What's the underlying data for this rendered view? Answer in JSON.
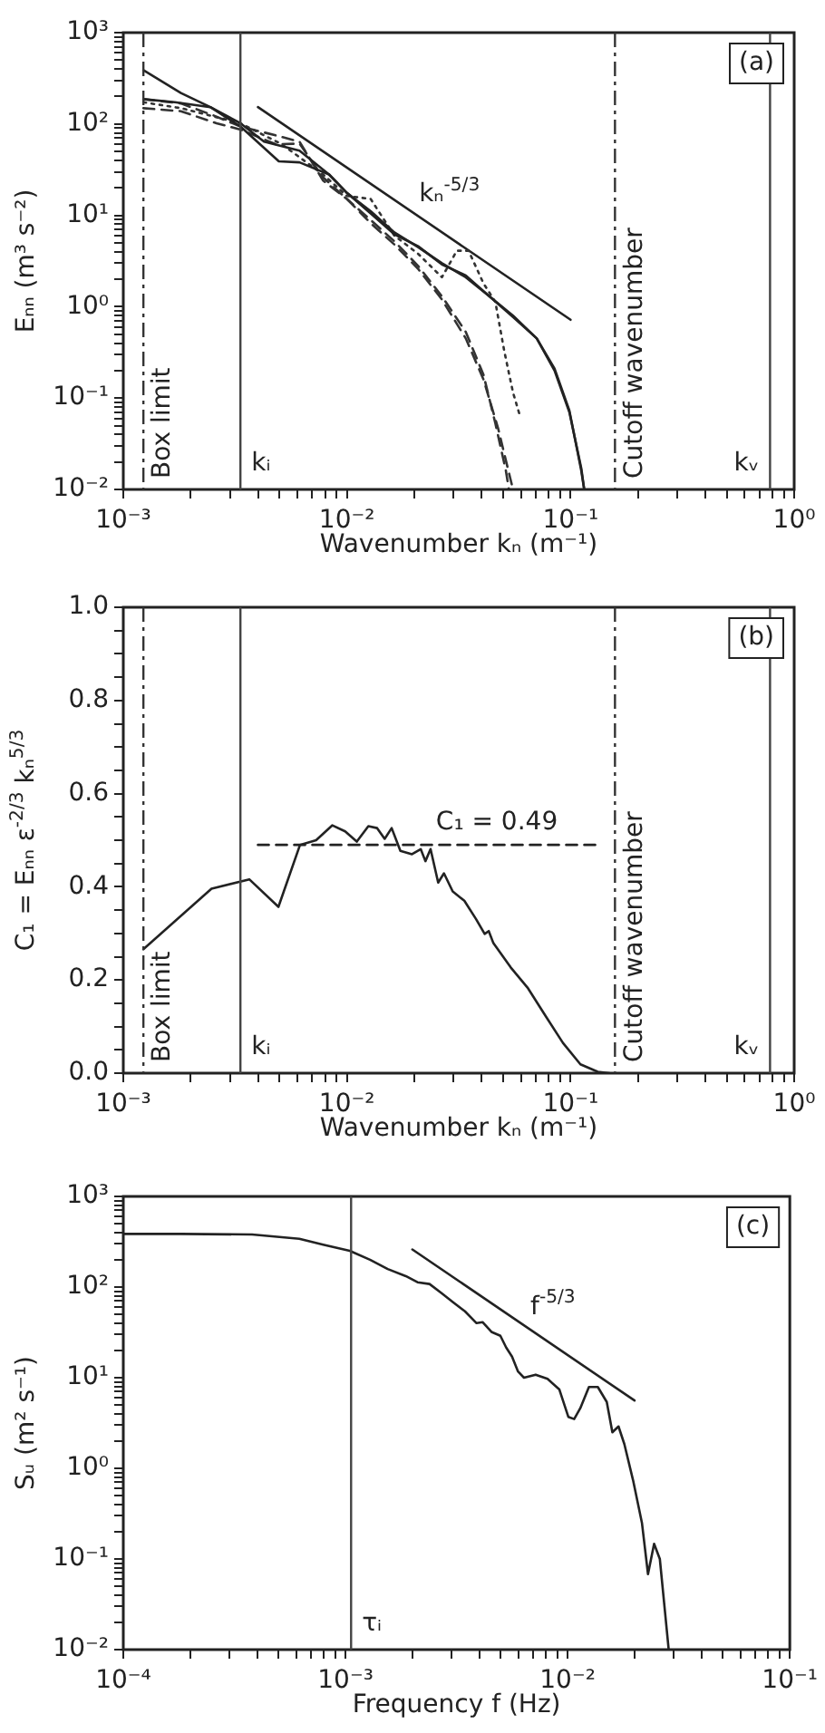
{
  "chart_data": [
    {
      "type": "line",
      "xlabel": "Wavenumber kₙ (m⁻¹)",
      "ylabel": "Eₙₙ (m³ s⁻²)",
      "log": "xy",
      "marker": "none",
      "xlim": [
        0.001,
        1
      ],
      "ylim": [
        0.01,
        1000
      ],
      "xticks": [
        {
          "value": 0.001,
          "label": "10⁻³"
        },
        {
          "value": 0.002,
          "label": null
        },
        {
          "value": 0.003,
          "label": null
        },
        {
          "value": 0.004,
          "label": null
        },
        {
          "value": 0.005,
          "label": null
        },
        {
          "value": 0.006,
          "label": null
        },
        {
          "value": 0.007,
          "label": null
        },
        {
          "value": 0.008,
          "label": null
        },
        {
          "value": 0.009,
          "label": null
        },
        {
          "value": 0.01,
          "label": "10⁻²"
        },
        {
          "value": 0.02,
          "label": null
        },
        {
          "value": 0.03,
          "label": null
        },
        {
          "value": 0.04,
          "label": null
        },
        {
          "value": 0.05,
          "label": null
        },
        {
          "value": 0.06,
          "label": null
        },
        {
          "value": 0.07,
          "label": null
        },
        {
          "value": 0.08,
          "label": null
        },
        {
          "value": 0.09,
          "label": null
        },
        {
          "value": 0.1,
          "label": "10⁻¹"
        },
        {
          "value": 0.2,
          "label": null
        },
        {
          "value": 0.3,
          "label": null
        },
        {
          "value": 0.4,
          "label": null
        },
        {
          "value": 0.5,
          "label": null
        },
        {
          "value": 0.6,
          "label": null
        },
        {
          "value": 0.7,
          "label": null
        },
        {
          "value": 0.8,
          "label": null
        },
        {
          "value": 0.9,
          "label": null
        },
        {
          "value": 1,
          "label": "10⁰"
        }
      ],
      "yticks": [
        {
          "value": 0.01,
          "label": "10⁻²"
        },
        {
          "value": 0.02,
          "label": null
        },
        {
          "value": 0.03,
          "label": null
        },
        {
          "value": 0.04,
          "label": null
        },
        {
          "value": 0.05,
          "label": null
        },
        {
          "value": 0.06,
          "label": null
        },
        {
          "value": 0.07,
          "label": null
        },
        {
          "value": 0.08,
          "label": null
        },
        {
          "value": 0.09,
          "label": null
        },
        {
          "value": 0.1,
          "label": "10⁻¹"
        },
        {
          "value": 0.2,
          "label": null
        },
        {
          "value": 0.3,
          "label": null
        },
        {
          "value": 0.4,
          "label": null
        },
        {
          "value": 0.5,
          "label": null
        },
        {
          "value": 0.6,
          "label": null
        },
        {
          "value": 0.7,
          "label": null
        },
        {
          "value": 0.8,
          "label": null
        },
        {
          "value": 0.9,
          "label": null
        },
        {
          "value": 1,
          "label": "10⁰"
        },
        {
          "value": 2,
          "label": null
        },
        {
          "value": 3,
          "label": null
        },
        {
          "value": 4,
          "label": null
        },
        {
          "value": 5,
          "label": null
        },
        {
          "value": 6,
          "label": null
        },
        {
          "value": 7,
          "label": null
        },
        {
          "value": 8,
          "label": null
        },
        {
          "value": 9,
          "label": null
        },
        {
          "value": 10,
          "label": "10¹"
        },
        {
          "value": 20,
          "label": null
        },
        {
          "value": 30,
          "label": null
        },
        {
          "value": 40,
          "label": null
        },
        {
          "value": 50,
          "label": null
        },
        {
          "value": 60,
          "label": null
        },
        {
          "value": 70,
          "label": null
        },
        {
          "value": 80,
          "label": null
        },
        {
          "value": 90,
          "label": null
        },
        {
          "value": 100,
          "label": "10²"
        },
        {
          "value": 200,
          "label": null
        },
        {
          "value": 300,
          "label": null
        },
        {
          "value": 400,
          "label": null
        },
        {
          "value": 500,
          "label": null
        },
        {
          "value": 600,
          "label": null
        },
        {
          "value": 700,
          "label": null
        },
        {
          "value": 800,
          "label": null
        },
        {
          "value": 900,
          "label": null
        },
        {
          "value": 1000,
          "label": "10³"
        }
      ],
      "series": [
        {
          "type": "line",
          "color": "#222222",
          "line_style": "solid",
          "x": [
            0.00123,
            0.00181,
            0.00245,
            0.00334,
            0.00496,
            0.00614,
            0.00832,
            0.01,
            0.01277,
            0.0163,
            0.0208,
            0.0266,
            0.034,
            0.0434,
            0.0553,
            0.0706,
            0.0848,
            0.0988,
            0.1117,
            0.1151
          ],
          "values": [
            388,
            218,
            153,
            94,
            39,
            38,
            28,
            17.6,
            11.1,
            6.5,
            4.5,
            3.0,
            2.1,
            1.3,
            0.77,
            0.45,
            0.21,
            0.073,
            0.016,
            0.01
          ]
        },
        {
          "type": "line",
          "color": "#222222",
          "line_style": "solid",
          "x": [
            0.00123,
            0.0017,
            0.00245,
            0.00334,
            0.00426,
            0.00614,
            0.00832,
            0.01,
            0.01277,
            0.0163,
            0.0208,
            0.0266,
            0.034,
            0.0434,
            0.0553,
            0.0706,
            0.0848,
            0.0988,
            0.1117,
            0.1151
          ],
          "values": [
            187,
            173,
            153,
            102,
            64,
            51,
            28,
            17.6,
            10.5,
            6.2,
            4.6,
            2.9,
            2.2,
            1.3,
            0.8,
            0.45,
            0.2,
            0.07,
            0.017,
            0.01
          ]
        },
        {
          "type": "line",
          "color": "#333333",
          "line_style": "dashed",
          "x": [
            0.00123,
            0.00181,
            0.00253,
            0.00334,
            0.00481,
            0.00614,
            0.00783,
            0.01,
            0.01277,
            0.0163,
            0.0208,
            0.0266,
            0.034,
            0.0408,
            0.0461,
            0.0514,
            0.053
          ],
          "values": [
            187,
            168,
            124,
            94,
            75,
            64,
            24,
            15.1,
            8.9,
            5.2,
            2.8,
            1.3,
            0.53,
            0.18,
            0.053,
            0.016,
            0.01
          ]
        },
        {
          "type": "line",
          "color": "#333333",
          "line_style": "dashed",
          "x": [
            0.00123,
            0.00181,
            0.00261,
            0.00334,
            0.00481,
            0.00614,
            0.00783,
            0.01,
            0.01277,
            0.0163,
            0.0208,
            0.0266,
            0.034,
            0.0408,
            0.0475,
            0.0536,
            0.0553
          ],
          "values": [
            149,
            138,
            102,
            87,
            60,
            61,
            26,
            15.1,
            8.2,
            4.8,
            2.6,
            1.2,
            0.45,
            0.16,
            0.046,
            0.0136,
            0.01
          ]
        },
        {
          "type": "line",
          "color": "#333333",
          "line_style": "dotted",
          "x": [
            0.00123,
            0.00181,
            0.00334,
            0.00511,
            0.00783,
            0.01,
            0.01277,
            0.0163,
            0.0208,
            0.0266,
            0.031,
            0.035,
            0.0408,
            0.0461,
            0.0505,
            0.0553,
            0.0596
          ],
          "values": [
            173,
            149,
            102,
            60,
            28,
            16.3,
            15.1,
            6.0,
            3.8,
            2.1,
            4.1,
            4.1,
            1.8,
            1.13,
            0.33,
            0.115,
            0.062
          ]
        },
        {
          "type": "line",
          "color": "#222222",
          "line_style": "solid",
          "x": [
            0.004,
            0.1
          ],
          "values": [
            153,
            0.72
          ]
        }
      ],
      "ref_lines": [
        {
          "axis": "x",
          "value": 0.00123,
          "label": "Box limit",
          "color": "#333333",
          "line_style": "dashed"
        },
        {
          "axis": "x",
          "value": 0.00334,
          "label": "kᵢ",
          "color": "#444444",
          "line_style": "solid"
        },
        {
          "axis": "x",
          "value": 0.158,
          "label": "Cutoff wavenumber",
          "color": "#333333",
          "line_style": "dashed"
        },
        {
          "axis": "x",
          "value": 0.78,
          "label": "kᵥ",
          "color": "#444444",
          "line_style": "solid"
        }
      ],
      "annotations": [
        "(a)",
        {
          "text": "kₙ$^{-5/3}$",
          "x": 0.021,
          "y": 9.7
        }
      ]
    },
    {
      "type": "line",
      "xlabel": "Wavenumber kₙ (m⁻¹)",
      "ylabel": "C₁ = Eₙₙ ε$^{-2/3}$ kₙ$^{5/3}$",
      "log": "x",
      "marker": "none",
      "xlim": [
        0.001,
        1
      ],
      "ylim": [
        0,
        1
      ],
      "xticks": [
        {
          "value": 0.001,
          "label": "10⁻³"
        },
        {
          "value": 0.002,
          "label": null
        },
        {
          "value": 0.003,
          "label": null
        },
        {
          "value": 0.004,
          "label": null
        },
        {
          "value": 0.005,
          "label": null
        },
        {
          "value": 0.006,
          "label": null
        },
        {
          "value": 0.007,
          "label": null
        },
        {
          "value": 0.008,
          "label": null
        },
        {
          "value": 0.009,
          "label": null
        },
        {
          "value": 0.01,
          "label": "10⁻²"
        },
        {
          "value": 0.02,
          "label": null
        },
        {
          "value": 0.03,
          "label": null
        },
        {
          "value": 0.04,
          "label": null
        },
        {
          "value": 0.05,
          "label": null
        },
        {
          "value": 0.06,
          "label": null
        },
        {
          "value": 0.07,
          "label": null
        },
        {
          "value": 0.08,
          "label": null
        },
        {
          "value": 0.09,
          "label": null
        },
        {
          "value": 0.1,
          "label": "10⁻¹"
        },
        {
          "value": 0.2,
          "label": null
        },
        {
          "value": 0.3,
          "label": null
        },
        {
          "value": 0.4,
          "label": null
        },
        {
          "value": 0.5,
          "label": null
        },
        {
          "value": 0.6,
          "label": null
        },
        {
          "value": 0.7,
          "label": null
        },
        {
          "value": 0.8,
          "label": null
        },
        {
          "value": 0.9,
          "label": null
        },
        {
          "value": 1,
          "label": "10⁰"
        }
      ],
      "yticks": [
        {
          "value": 0,
          "label": "0.0"
        },
        {
          "value": 0.05,
          "label": null
        },
        {
          "value": 0.1,
          "label": null
        },
        {
          "value": 0.15,
          "label": null
        },
        {
          "value": 0.2,
          "label": "0.2"
        },
        {
          "value": 0.25,
          "label": null
        },
        {
          "value": 0.3,
          "label": null
        },
        {
          "value": 0.35,
          "label": null
        },
        {
          "value": 0.4,
          "label": "0.4"
        },
        {
          "value": 0.45,
          "label": null
        },
        {
          "value": 0.5,
          "label": null
        },
        {
          "value": 0.55,
          "label": null
        },
        {
          "value": 0.6,
          "label": "0.6"
        },
        {
          "value": 0.65,
          "label": null
        },
        {
          "value": 0.7,
          "label": null
        },
        {
          "value": 0.75,
          "label": null
        },
        {
          "value": 0.8,
          "label": "0.8"
        },
        {
          "value": 0.85,
          "label": null
        },
        {
          "value": 0.9,
          "label": null
        },
        {
          "value": 0.95,
          "label": null
        },
        {
          "value": 1,
          "label": "1.0"
        }
      ],
      "series": [
        {
          "type": "line",
          "color": "#222222",
          "line_style": "solid",
          "x": [
            0.00123,
            0.00248,
            0.00366,
            0.00494,
            0.00617,
            0.00728,
            0.00861,
            0.00982,
            0.01107,
            0.01247,
            0.01365,
            0.01475,
            0.01585,
            0.01734,
            0.01954,
            0.02138,
            0.02244,
            0.02366,
            0.02559,
            0.02716,
            0.02972,
            0.0335,
            0.03776,
            0.0413,
            0.04307,
            0.04519,
            0.05401,
            0.06457,
            0.07725,
            0.09247,
            0.1107,
            0.1324,
            0.149
          ],
          "values": [
            0.266,
            0.396,
            0.416,
            0.357,
            0.49,
            0.5,
            0.532,
            0.519,
            0.497,
            0.53,
            0.526,
            0.503,
            0.526,
            0.477,
            0.47,
            0.481,
            0.455,
            0.481,
            0.409,
            0.429,
            0.39,
            0.37,
            0.331,
            0.299,
            0.305,
            0.279,
            0.227,
            0.182,
            0.123,
            0.065,
            0.019,
            0.003,
            0
          ]
        },
        {
          "type": "line",
          "color": "#222222",
          "line_style": "dashed",
          "x": [
            0.004,
            0.132
          ],
          "values": [
            0.49,
            0.49
          ]
        }
      ],
      "ref_lines": [
        {
          "axis": "x",
          "value": 0.00123,
          "label": "Box limit",
          "color": "#333333",
          "line_style": "dashed"
        },
        {
          "axis": "x",
          "value": 0.00334,
          "label": "kᵢ",
          "color": "#444444",
          "line_style": "solid"
        },
        {
          "axis": "x",
          "value": 0.158,
          "label": "Cutoff wavenumber",
          "color": "#333333",
          "line_style": "dashed"
        },
        {
          "axis": "x",
          "value": 0.78,
          "label": "kᵥ",
          "color": "#444444",
          "line_style": "solid"
        }
      ],
      "annotations": [
        "(b)",
        {
          "text": "C₁ = 0.49",
          "x": 0.025,
          "y": 0.49
        }
      ]
    },
    {
      "type": "line",
      "xlabel": "Frequency f (Hz)",
      "ylabel": "Sᵤ (m² s⁻¹)",
      "log": "xy",
      "marker": "none",
      "xlim": [
        0.0001,
        0.1
      ],
      "ylim": [
        0.01,
        1000
      ],
      "xticks": [
        {
          "value": 0.0001,
          "label": "10⁻⁴"
        },
        {
          "value": 0.0002,
          "label": null
        },
        {
          "value": 0.0003,
          "label": null
        },
        {
          "value": 0.0004,
          "label": null
        },
        {
          "value": 0.0005,
          "label": null
        },
        {
          "value": 0.0006,
          "label": null
        },
        {
          "value": 0.0007,
          "label": null
        },
        {
          "value": 0.0008,
          "label": null
        },
        {
          "value": 0.0009,
          "label": null
        },
        {
          "value": 0.001,
          "label": "10⁻³"
        },
        {
          "value": 0.002,
          "label": null
        },
        {
          "value": 0.003,
          "label": null
        },
        {
          "value": 0.004,
          "label": null
        },
        {
          "value": 0.005,
          "label": null
        },
        {
          "value": 0.006,
          "label": null
        },
        {
          "value": 0.007,
          "label": null
        },
        {
          "value": 0.008,
          "label": null
        },
        {
          "value": 0.009,
          "label": null
        },
        {
          "value": 0.01,
          "label": "10⁻²"
        },
        {
          "value": 0.02,
          "label": null
        },
        {
          "value": 0.03,
          "label": null
        },
        {
          "value": 0.04,
          "label": null
        },
        {
          "value": 0.05,
          "label": null
        },
        {
          "value": 0.06,
          "label": null
        },
        {
          "value": 0.07,
          "label": null
        },
        {
          "value": 0.08,
          "label": null
        },
        {
          "value": 0.09,
          "label": null
        },
        {
          "value": 0.1,
          "label": "10⁻¹"
        }
      ],
      "yticks": [
        {
          "value": 0.01,
          "label": "10⁻²"
        },
        {
          "value": 0.02,
          "label": null
        },
        {
          "value": 0.03,
          "label": null
        },
        {
          "value": 0.04,
          "label": null
        },
        {
          "value": 0.05,
          "label": null
        },
        {
          "value": 0.06,
          "label": null
        },
        {
          "value": 0.07,
          "label": null
        },
        {
          "value": 0.08,
          "label": null
        },
        {
          "value": 0.09,
          "label": null
        },
        {
          "value": 0.1,
          "label": "10⁻¹"
        },
        {
          "value": 0.2,
          "label": null
        },
        {
          "value": 0.3,
          "label": null
        },
        {
          "value": 0.4,
          "label": null
        },
        {
          "value": 0.5,
          "label": null
        },
        {
          "value": 0.6,
          "label": null
        },
        {
          "value": 0.7,
          "label": null
        },
        {
          "value": 0.8,
          "label": null
        },
        {
          "value": 0.9,
          "label": null
        },
        {
          "value": 1,
          "label": "10⁰"
        },
        {
          "value": 2,
          "label": null
        },
        {
          "value": 3,
          "label": null
        },
        {
          "value": 4,
          "label": null
        },
        {
          "value": 5,
          "label": null
        },
        {
          "value": 6,
          "label": null
        },
        {
          "value": 7,
          "label": null
        },
        {
          "value": 8,
          "label": null
        },
        {
          "value": 9,
          "label": null
        },
        {
          "value": 10,
          "label": "10¹"
        },
        {
          "value": 20,
          "label": null
        },
        {
          "value": 30,
          "label": null
        },
        {
          "value": 40,
          "label": null
        },
        {
          "value": 50,
          "label": null
        },
        {
          "value": 60,
          "label": null
        },
        {
          "value": 70,
          "label": null
        },
        {
          "value": 80,
          "label": null
        },
        {
          "value": 90,
          "label": null
        },
        {
          "value": 100,
          "label": "10²"
        },
        {
          "value": 200,
          "label": null
        },
        {
          "value": 300,
          "label": null
        },
        {
          "value": 400,
          "label": null
        },
        {
          "value": 500,
          "label": null
        },
        {
          "value": 600,
          "label": null
        },
        {
          "value": 700,
          "label": null
        },
        {
          "value": 800,
          "label": null
        },
        {
          "value": 900,
          "label": null
        },
        {
          "value": 1000,
          "label": "10³"
        }
      ],
      "series": [
        {
          "type": "line",
          "color": "#222222",
          "line_style": "solid",
          "x": [
            0.0001,
            0.000182,
            0.00038,
            0.00062,
            0.000794,
            0.001045,
            0.00129,
            0.00155,
            0.00187,
            0.00211,
            0.00239,
            0.0027,
            0.00305,
            0.00345,
            0.00389,
            0.00414,
            0.00454,
            0.00498,
            0.00529,
            0.00562,
            0.00598,
            0.00636,
            0.00718,
            0.00812,
            0.00918,
            0.01007,
            0.0107,
            0.0114,
            0.01247,
            0.01367,
            0.015,
            0.0159,
            0.01694,
            0.018,
            0.0197,
            0.0216,
            0.023,
            0.0245,
            0.026,
            0.0285
          ],
          "values": [
            386,
            386,
            380,
            341,
            293,
            251,
            200,
            158,
            132,
            113,
            108,
            86,
            68,
            54,
            40,
            41,
            32,
            29,
            21.5,
            17.1,
            11.7,
            10,
            10.8,
            9.7,
            7.4,
            3.7,
            3.5,
            4.6,
            7.9,
            7.9,
            5.4,
            2.5,
            2.9,
            1.85,
            0.74,
            0.25,
            0.068,
            0.147,
            0.1,
            0.01
          ]
        },
        {
          "type": "line",
          "color": "#222222",
          "line_style": "solid",
          "x": [
            0.002,
            0.02
          ],
          "values": [
            260,
            5.6
          ]
        }
      ],
      "ref_lines": [
        {
          "axis": "x",
          "value": 0.00106,
          "label": "τᵢ",
          "color": "#444444",
          "line_style": "solid"
        }
      ],
      "annotations": [
        "(c)",
        {
          "text": "f$^{-5/3}$",
          "x": 0.0068,
          "y": 34
        }
      ]
    }
  ]
}
